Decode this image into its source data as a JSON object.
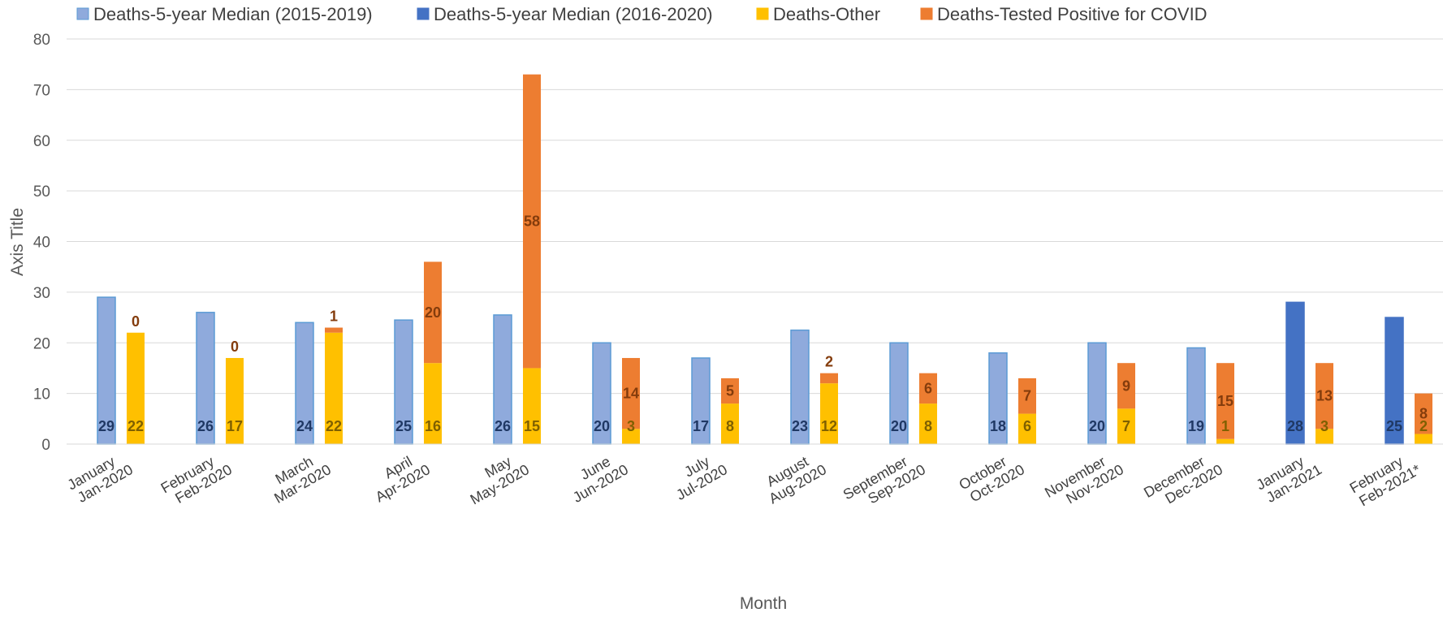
{
  "chart_data": {
    "type": "bar",
    "ylabel": "Axis Title",
    "xlabel": "Month",
    "ylim": [
      0,
      80
    ],
    "yticks": [
      0,
      10,
      20,
      30,
      40,
      50,
      60,
      70,
      80
    ],
    "grid": true,
    "legend_position": "top",
    "categories": [
      {
        "month": "January",
        "period": "Jan-2020"
      },
      {
        "month": "February",
        "period": "Feb-2020"
      },
      {
        "month": "March",
        "period": "Mar-2020"
      },
      {
        "month": "April",
        "period": "Apr-2020"
      },
      {
        "month": "May",
        "period": "May-2020"
      },
      {
        "month": "June",
        "period": "Jun-2020"
      },
      {
        "month": "July",
        "period": "Jul-2020"
      },
      {
        "month": "August",
        "period": "Aug-2020"
      },
      {
        "month": "September",
        "period": "Sep-2020"
      },
      {
        "month": "October",
        "period": "Oct-2020"
      },
      {
        "month": "November",
        "period": "Nov-2020"
      },
      {
        "month": "December",
        "period": "Dec-2020"
      },
      {
        "month": "January",
        "period": "Jan-2021"
      },
      {
        "month": "February",
        "period": "Feb-2021*"
      }
    ],
    "median_series": [
      {
        "name": "Deaths-5-year Median (2015-2019)",
        "color": "#8faadc",
        "stroke": "#5b9bd5",
        "label_color": "#1f3864",
        "values": [
          29,
          26,
          24,
          24.5,
          25.5,
          20,
          17,
          22.5,
          20,
          18,
          20,
          19,
          null,
          null
        ],
        "labels": [
          "29",
          "26",
          "24",
          "25",
          "26",
          "20",
          "17",
          "23",
          "20",
          "18",
          "20",
          "19",
          null,
          null
        ]
      },
      {
        "name": "Deaths-5-year Median (2016-2020)",
        "color": "#4472c4",
        "stroke": "#4472c4",
        "label_color": "#1f3864",
        "values": [
          null,
          null,
          null,
          null,
          null,
          null,
          null,
          null,
          null,
          null,
          null,
          null,
          28,
          25
        ],
        "labels": [
          null,
          null,
          null,
          null,
          null,
          null,
          null,
          null,
          null,
          null,
          null,
          null,
          "28",
          "25"
        ]
      }
    ],
    "stack_series": [
      {
        "name": "Deaths-Other",
        "color": "#ffc000",
        "label_color": "#7f6000",
        "values": [
          22,
          17,
          22,
          16,
          15,
          3,
          8,
          12,
          8,
          6,
          7,
          1,
          3,
          2
        ]
      },
      {
        "name": "Deaths-Tested Positive for COVID",
        "color": "#ed7d31",
        "label_color": "#843c0c",
        "values": [
          0,
          0,
          1,
          20,
          58,
          14,
          5,
          2,
          6,
          7,
          9,
          15,
          13,
          8
        ]
      }
    ]
  }
}
